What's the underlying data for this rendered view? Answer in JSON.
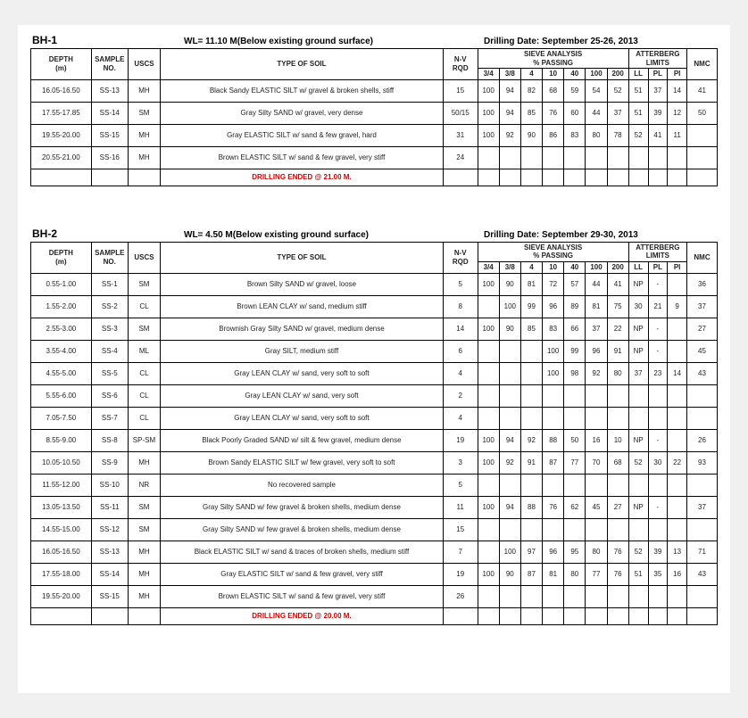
{
  "boreholes": [
    {
      "id": "BH-1",
      "wl": "WL= 11.10 M(Below existing ground surface)",
      "drill_date": "Drilling Date: September 25-26, 2013",
      "rows": [
        {
          "depth": "16.05-16.50",
          "sample": "SS-13",
          "uscs": "MH",
          "soil": "Black Sandy ELASTIC SILT w/ gravel & broken shells, stiff",
          "nv": "15",
          "s": [
            "100",
            "94",
            "82",
            "68",
            "59",
            "54",
            "52",
            "51",
            "37"
          ],
          "a": [
            "14",
            "",
            ""
          ],
          "nmc": "41"
        },
        {
          "depth": "17.55-17.85",
          "sample": "SS-14",
          "uscs": "SM",
          "soil": "Gray Silty SAND w/ gravel, very dense",
          "nv": "50/15",
          "s": [
            "100",
            "94",
            "85",
            "76",
            "60",
            "44",
            "37",
            "51",
            "39"
          ],
          "a": [
            "12",
            "",
            ""
          ],
          "nmc": "50"
        },
        {
          "depth": "19.55-20.00",
          "sample": "SS-15",
          "uscs": "MH",
          "soil": "Gray ELASTIC SILT w/ sand & few gravel, hard",
          "nv": "31",
          "s": [
            "100",
            "92",
            "90",
            "86",
            "83",
            "80",
            "78",
            "52",
            "41"
          ],
          "a": [
            "11",
            "",
            ""
          ],
          "nmc": ""
        },
        {
          "depth": "20.55-21.00",
          "sample": "SS-16",
          "uscs": "MH",
          "soil": "Brown ELASTIC SILT w/ sand & few gravel, very stiff",
          "nv": "24",
          "s": [
            "",
            "",
            "",
            "",
            "",
            "",
            "",
            "",
            ""
          ],
          "a": [
            "",
            "",
            ""
          ],
          "nmc": ""
        }
      ],
      "end": "DRILLING ENDED @ 21.00 M."
    },
    {
      "id": "BH-2",
      "wl": "WL= 4.50 M(Below existing ground surface)",
      "drill_date": "Drilling Date: September 29-30, 2013",
      "rows": [
        {
          "depth": "0.55-1.00",
          "sample": "SS-1",
          "uscs": "SM",
          "soil": "Brown Silty SAND w/ gravel, loose",
          "nv": "5",
          "s": [
            "100",
            "90",
            "81",
            "72",
            "57",
            "44",
            "41",
            "",
            ""
          ],
          "a": [
            "NP",
            "-",
            ""
          ],
          "nmc": "36"
        },
        {
          "depth": "1.55-2.00",
          "sample": "SS-2",
          "uscs": "CL",
          "soil": "Brown LEAN CLAY w/ sand, medium stiff",
          "nv": "8",
          "s": [
            "",
            "100",
            "99",
            "96",
            "89",
            "81",
            "75",
            "30",
            "21"
          ],
          "a": [
            "9",
            "",
            ""
          ],
          "nmc": "37"
        },
        {
          "depth": "2.55-3.00",
          "sample": "SS-3",
          "uscs": "SM",
          "soil": "Brownish Gray Silty SAND w/ gravel, medium dense",
          "nv": "14",
          "s": [
            "100",
            "90",
            "85",
            "83",
            "66",
            "37",
            "22",
            "",
            ""
          ],
          "a": [
            "NP",
            "-",
            ""
          ],
          "nmc": "27"
        },
        {
          "depth": "3.55-4.00",
          "sample": "SS-4",
          "uscs": "ML",
          "soil": "Gray SILT, medium stiff",
          "nv": "6",
          "s": [
            "",
            "",
            "",
            "100",
            "99",
            "96",
            "91",
            "",
            ""
          ],
          "a": [
            "NP",
            "-",
            ""
          ],
          "nmc": "45"
        },
        {
          "depth": "4.55-5.00",
          "sample": "SS-5",
          "uscs": "CL",
          "soil": "Gray LEAN CLAY w/ sand, very soft to soft",
          "nv": "4",
          "s": [
            "",
            "",
            "",
            "100",
            "98",
            "92",
            "80",
            "37",
            "23"
          ],
          "a": [
            "14",
            "",
            ""
          ],
          "nmc": "43"
        },
        {
          "depth": "5.55-6.00",
          "sample": "SS-6",
          "uscs": "CL",
          "soil": "Gray LEAN CLAY w/ sand, very soft",
          "nv": "2",
          "s": [
            "",
            "",
            "",
            "",
            "",
            "",
            "",
            "",
            ""
          ],
          "a": [
            "",
            "",
            ""
          ],
          "nmc": ""
        },
        {
          "depth": "7.05-7.50",
          "sample": "SS-7",
          "uscs": "CL",
          "soil": "Gray LEAN CLAY w/ sand, very soft to soft",
          "nv": "4",
          "s": [
            "",
            "",
            "",
            "",
            "",
            "",
            "",
            "",
            ""
          ],
          "a": [
            "",
            "",
            ""
          ],
          "nmc": ""
        },
        {
          "depth": "8.55-9.00",
          "sample": "SS-8",
          "uscs": "SP-SM",
          "soil": "Black Poorly Graded SAND w/ silt & few gravel, medium dense",
          "nv": "19",
          "s": [
            "100",
            "94",
            "92",
            "88",
            "50",
            "16",
            "10",
            "",
            ""
          ],
          "a": [
            "NP",
            "-",
            ""
          ],
          "nmc": "26"
        },
        {
          "depth": "10.05-10.50",
          "sample": "SS-9",
          "uscs": "MH",
          "soil": "Brown Sandy ELASTIC SILT w/ few gravel, very soft to soft",
          "nv": "3",
          "s": [
            "100",
            "92",
            "91",
            "87",
            "77",
            "70",
            "68",
            "52",
            "30"
          ],
          "a": [
            "22",
            "",
            ""
          ],
          "nmc": "93"
        },
        {
          "depth": "11.55-12.00",
          "sample": "SS-10",
          "uscs": "NR",
          "soil": "No recovered sample",
          "nv": "5",
          "s": [
            "",
            "",
            "",
            "",
            "",
            "",
            "",
            "",
            ""
          ],
          "a": [
            "",
            "",
            ""
          ],
          "nmc": ""
        },
        {
          "depth": "13.05-13.50",
          "sample": "SS-11",
          "uscs": "SM",
          "soil": "Gray Silty SAND w/ few gravel & broken shells, medium dense",
          "nv": "11",
          "s": [
            "100",
            "94",
            "88",
            "76",
            "62",
            "45",
            "27",
            "",
            ""
          ],
          "a": [
            "NP",
            "-",
            ""
          ],
          "nmc": "37"
        },
        {
          "depth": "14.55-15.00",
          "sample": "SS-12",
          "uscs": "SM",
          "soil": "Gray Silty SAND w/ few gravel & broken shells, medium dense",
          "nv": "15",
          "s": [
            "",
            "",
            "",
            "",
            "",
            "",
            "",
            "",
            ""
          ],
          "a": [
            "",
            "",
            ""
          ],
          "nmc": ""
        },
        {
          "depth": "16.05-16.50",
          "sample": "SS-13",
          "uscs": "MH",
          "soil": "Black ELASTIC SILT w/ sand & traces of broken shells, medium stiff",
          "nv": "7",
          "s": [
            "",
            "100",
            "97",
            "96",
            "95",
            "80",
            "76",
            "52",
            "39"
          ],
          "a": [
            "13",
            "",
            ""
          ],
          "nmc": "71"
        },
        {
          "depth": "17.55-18.00",
          "sample": "SS-14",
          "uscs": "MH",
          "soil": "Gray ELASTIC SILT w/ sand & few gravel, very stiff",
          "nv": "19",
          "s": [
            "100",
            "90",
            "87",
            "81",
            "80",
            "77",
            "76",
            "51",
            "35"
          ],
          "a": [
            "16",
            "",
            ""
          ],
          "nmc": "43"
        },
        {
          "depth": "19.55-20.00",
          "sample": "SS-15",
          "uscs": "MH",
          "soil": "Brown ELASTIC SILT w/ sand & few gravel, very stiff",
          "nv": "26",
          "s": [
            "",
            "",
            "",
            "",
            "",
            "",
            "",
            "",
            ""
          ],
          "a": [
            "",
            "",
            ""
          ],
          "nmc": ""
        }
      ],
      "end": "DRILLING ENDED @ 20.00 M."
    }
  ],
  "head": {
    "depth": "DEPTH",
    "depth2": "(m)",
    "sample": "SAMPLE",
    "sample2": "NO.",
    "uscs": "USCS",
    "soil": "TYPE OF SOIL",
    "nv": "N-V",
    "rqd": "RQD",
    "sieve": "SIEVE ANALYSIS",
    "passing": "% PASSING",
    "sieve_cols": [
      "3/4",
      "3/8",
      "4",
      "10",
      "40",
      "100",
      "200"
    ],
    "att": "ATTERBERG",
    "att2": "LIMITS",
    "att_cols": [
      "LL",
      "PL",
      "PI"
    ],
    "nmc": "NMC"
  }
}
